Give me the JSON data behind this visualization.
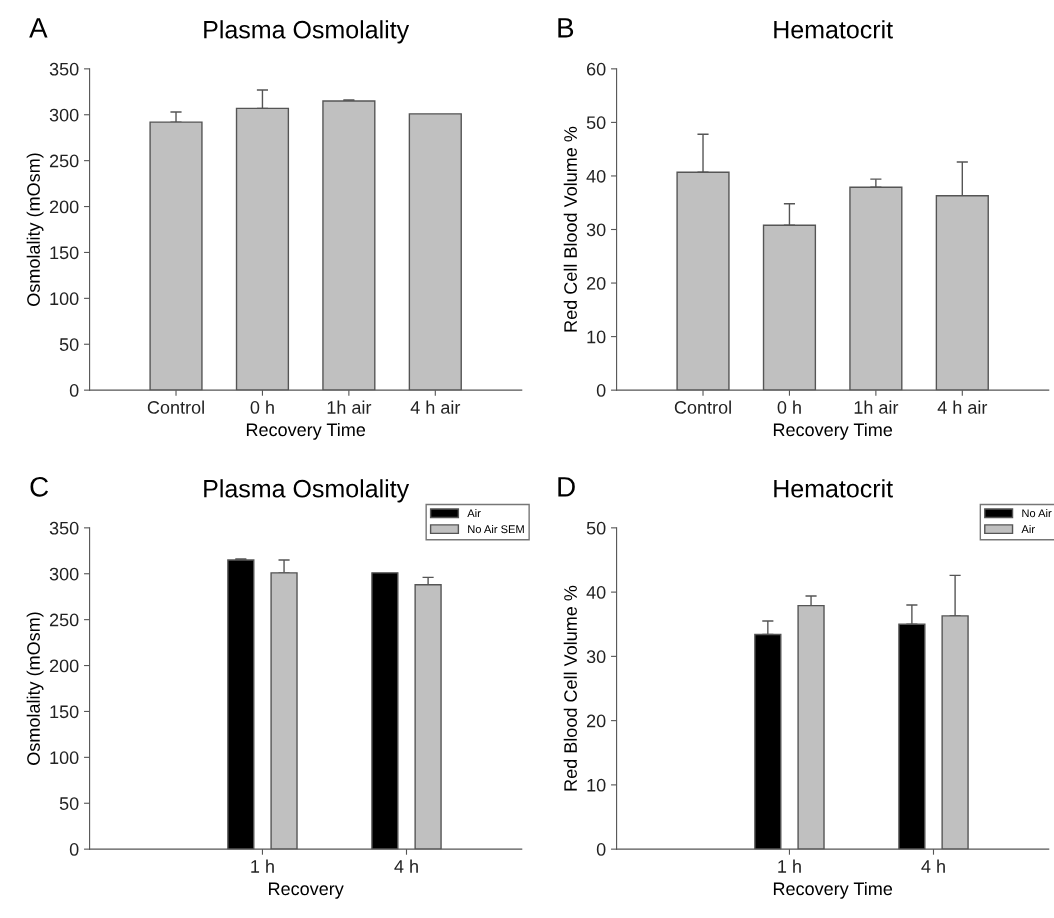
{
  "chart_data": [
    {
      "type": "bar",
      "title": "Plasma Osmolality",
      "xlabel": "Recovery Time",
      "ylabel": "Osmolality (mOsm)",
      "annotations": [
        "A"
      ],
      "categories": [
        "Control",
        "0 h",
        "1h air",
        "4 h air"
      ],
      "series": [
        {
          "color": "#c0c0c0",
          "values": [
            292,
            307,
            315,
            301
          ],
          "errors": [
            [
              292,
              303
            ],
            [
              307,
              327
            ],
            [
              315,
              316
            ],
            null
          ]
        }
      ],
      "ylim": [
        0,
        350
      ],
      "yticks": [
        0,
        50,
        100,
        150,
        200,
        250,
        300,
        350
      ],
      "grid": false,
      "legend": false
    },
    {
      "type": "bar",
      "title": "Hematocrit",
      "xlabel": "Recovery Time",
      "ylabel": "Red Cell Blood Volume %",
      "annotations": [
        "B"
      ],
      "categories": [
        "Control",
        "0 h",
        "1h air",
        "4 h air"
      ],
      "series": [
        {
          "color": "#c0c0c0",
          "values": [
            40.7,
            30.8,
            37.9,
            36.3
          ],
          "errors": [
            [
              40.7,
              47.8
            ],
            [
              30.8,
              34.8
            ],
            [
              37.9,
              39.4
            ],
            [
              36.3,
              42.6
            ]
          ]
        }
      ],
      "ylim": [
        0,
        60
      ],
      "yticks": [
        0,
        10,
        20,
        30,
        40,
        50,
        60
      ],
      "grid": false,
      "legend": false
    },
    {
      "type": "bar",
      "title": "Plasma Osmolality",
      "xlabel": "Recovery",
      "ylabel": "Osmolality (mOsm)",
      "annotations": [
        "C"
      ],
      "categories": [
        "1 h",
        "4 h"
      ],
      "series": [
        {
          "name": "Air",
          "color": "#000000",
          "values": [
            315,
            301
          ],
          "errors": [
            [
              315,
              316
            ],
            null
          ]
        },
        {
          "name": "No Air SEM",
          "color": "#c0c0c0",
          "values": [
            301,
            288
          ],
          "errors": [
            [
              301,
              315
            ],
            [
              288,
              296
            ]
          ]
        }
      ],
      "ylim": [
        0,
        350
      ],
      "yticks": [
        0,
        50,
        100,
        150,
        200,
        250,
        300,
        350
      ],
      "grid": false,
      "legend": "top right"
    },
    {
      "type": "bar",
      "title": "Hematocrit",
      "xlabel": "Recovery Time",
      "ylabel": "Red Blood Cell Volume %",
      "annotations": [
        "D"
      ],
      "categories": [
        "1 h",
        "4 h"
      ],
      "series": [
        {
          "name": "No Air",
          "color": "#000000",
          "values": [
            33.4,
            35.0
          ],
          "errors": [
            [
              33.4,
              35.5
            ],
            [
              35.0,
              38.0
            ]
          ]
        },
        {
          "name": "Air",
          "color": "#c0c0c0",
          "values": [
            37.9,
            36.3
          ],
          "errors": [
            [
              37.9,
              39.4
            ],
            [
              36.3,
              42.6
            ]
          ]
        }
      ],
      "ylim": [
        0,
        50
      ],
      "yticks": [
        0,
        10,
        20,
        30,
        40,
        50
      ],
      "grid": false,
      "legend": "top right"
    }
  ]
}
